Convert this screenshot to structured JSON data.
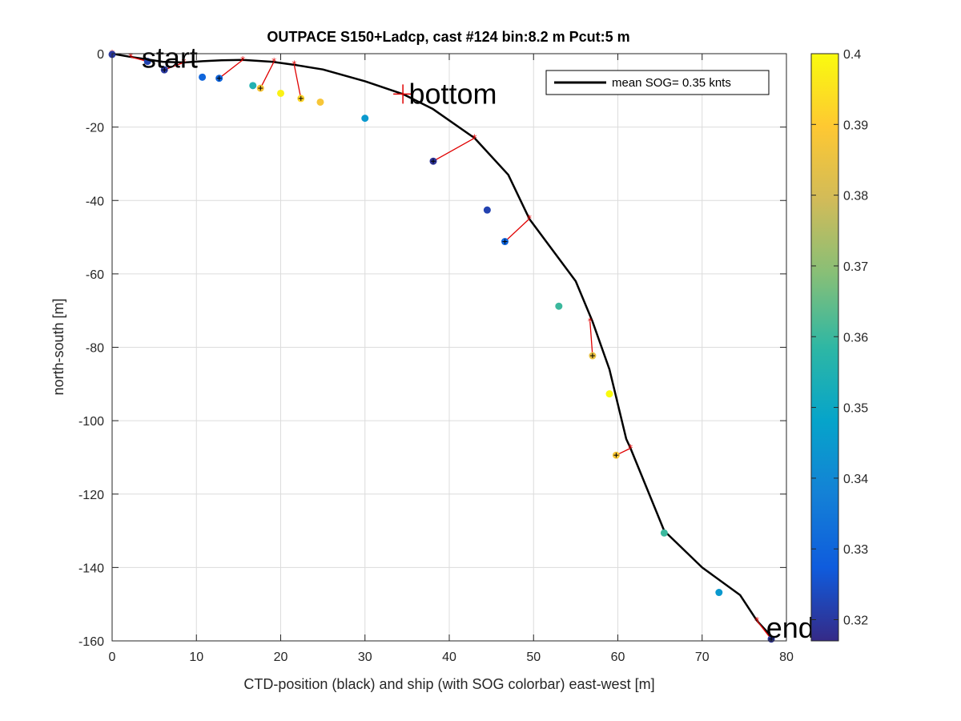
{
  "chart_data": {
    "type": "scatter",
    "title": "OUTPACE S150+Ladcp, cast #124 bin:8.2 m  Pcut:5 m",
    "xlabel": "CTD-position (black) and ship (with SOG colorbar) east-west [m]",
    "ylabel": "north-south [m]",
    "xlim": [
      0,
      80
    ],
    "ylim": [
      -160,
      0
    ],
    "xticks": [
      0,
      10,
      20,
      30,
      40,
      50,
      60,
      70,
      80
    ],
    "yticks": [
      -160,
      -140,
      -120,
      -100,
      -80,
      -60,
      -40,
      -20,
      0
    ],
    "grid": true,
    "legend": {
      "label": "mean SOG=  0.35 knts",
      "placement": "top-right"
    },
    "colorbar": {
      "min": 0.317,
      "max": 0.4,
      "ticks": [
        0.32,
        0.33,
        0.34,
        0.35,
        0.36,
        0.37,
        0.38,
        0.39,
        0.4
      ],
      "colormap": [
        "#352a87",
        "#0f5cdd",
        "#1481d6",
        "#06a4ca",
        "#2eb7a4",
        "#87bf77",
        "#d1bb59",
        "#fec832",
        "#f9fb0e"
      ]
    },
    "ctd_track": [
      [
        0,
        0
      ],
      [
        2,
        -0.8
      ],
      [
        4,
        -1.5
      ],
      [
        6,
        -2.2
      ],
      [
        8.5,
        -2.4
      ],
      [
        11,
        -2.0
      ],
      [
        13,
        -1.8
      ],
      [
        15.5,
        -1.7
      ],
      [
        19,
        -2.2
      ],
      [
        21.5,
        -3.0
      ],
      [
        25,
        -4.3
      ],
      [
        30,
        -7.5
      ],
      [
        34.5,
        -11
      ],
      [
        38,
        -15
      ],
      [
        43,
        -23
      ],
      [
        47,
        -33
      ],
      [
        49.5,
        -45
      ],
      [
        55,
        -62
      ],
      [
        57,
        -73
      ],
      [
        59,
        -86
      ],
      [
        61,
        -105
      ],
      [
        61.5,
        -107.5
      ],
      [
        65.5,
        -130
      ],
      [
        70,
        -140
      ],
      [
        74.5,
        -147.5
      ],
      [
        76.5,
        -154.5
      ],
      [
        78.3,
        -159
      ]
    ],
    "ship_points": [
      {
        "x": 0,
        "y": -0.2,
        "sog": 0.32
      },
      {
        "x": 4.2,
        "y": -2.1,
        "sog": 0.322
      },
      {
        "x": 6.2,
        "y": -4.4,
        "sog": 0.32
      },
      {
        "x": 10.7,
        "y": -6.4,
        "sog": 0.33
      },
      {
        "x": 12.7,
        "y": -6.7,
        "sog": 0.33
      },
      {
        "x": 16.7,
        "y": -8.7,
        "sog": 0.355
      },
      {
        "x": 17.6,
        "y": -9.4,
        "sog": 0.388
      },
      {
        "x": 20.0,
        "y": -10.8,
        "sog": 0.398
      },
      {
        "x": 22.4,
        "y": -12.2,
        "sog": 0.392
      },
      {
        "x": 24.7,
        "y": -13.2,
        "sog": 0.388
      },
      {
        "x": 30.0,
        "y": -17.6,
        "sog": 0.345
      },
      {
        "x": 38.1,
        "y": -29.3,
        "sog": 0.319
      },
      {
        "x": 44.5,
        "y": -42.6,
        "sog": 0.322
      },
      {
        "x": 46.6,
        "y": -51.2,
        "sog": 0.33
      },
      {
        "x": 53.0,
        "y": -68.8,
        "sog": 0.36
      },
      {
        "x": 57.0,
        "y": -82.3,
        "sog": 0.385
      },
      {
        "x": 59.0,
        "y": -92.7,
        "sog": 0.4
      },
      {
        "x": 59.8,
        "y": -109.4,
        "sog": 0.388
      },
      {
        "x": 65.5,
        "y": -130.6,
        "sog": 0.36
      },
      {
        "x": 72.0,
        "y": -146.8,
        "sog": 0.345
      },
      {
        "x": 78.2,
        "y": -159.5,
        "sog": 0.319
      }
    ],
    "red_links": [
      [
        [
          0,
          0
        ],
        [
          0,
          -0.2
        ]
      ],
      [
        [
          2.2,
          -0.9
        ],
        [
          4.2,
          -2.1
        ]
      ],
      [
        [
          8.5,
          -2.4
        ],
        [
          6.2,
          -4.4
        ]
      ],
      [
        [
          15.5,
          -1.7
        ],
        [
          12.7,
          -6.7
        ]
      ],
      [
        [
          19.2,
          -2.2
        ],
        [
          17.6,
          -9.4
        ]
      ],
      [
        [
          21.6,
          -3.0
        ],
        [
          22.4,
          -12.2
        ]
      ],
      [
        [
          43,
          -23
        ],
        [
          38.1,
          -29.3
        ]
      ],
      [
        [
          49.5,
          -45
        ],
        [
          46.6,
          -51.2
        ]
      ],
      [
        [
          56.7,
          -73
        ],
        [
          57.0,
          -82.3
        ]
      ],
      [
        [
          61.5,
          -107.5
        ],
        [
          59.8,
          -109.4
        ]
      ],
      [
        [
          76.5,
          -154.5
        ],
        [
          78.2,
          -159.5
        ]
      ]
    ],
    "starred_points": [
      [
        6.2,
        -4.4
      ],
      [
        12.7,
        -6.7
      ],
      [
        17.6,
        -9.4
      ],
      [
        22.4,
        -12.2
      ],
      [
        38.1,
        -29.3
      ],
      [
        46.6,
        -51.2
      ],
      [
        57.0,
        -82.3
      ],
      [
        59.8,
        -109.4
      ],
      [
        78.2,
        -159.5
      ]
    ],
    "annotations": [
      {
        "text": "start",
        "x": 3.5,
        "y": -1.2
      },
      {
        "text": "bottom",
        "x": 35.2,
        "y": -11
      },
      {
        "text": "end",
        "x": 77.6,
        "y": -156.5
      }
    ],
    "bottom_marker": [
      34.5,
      -11
    ]
  }
}
